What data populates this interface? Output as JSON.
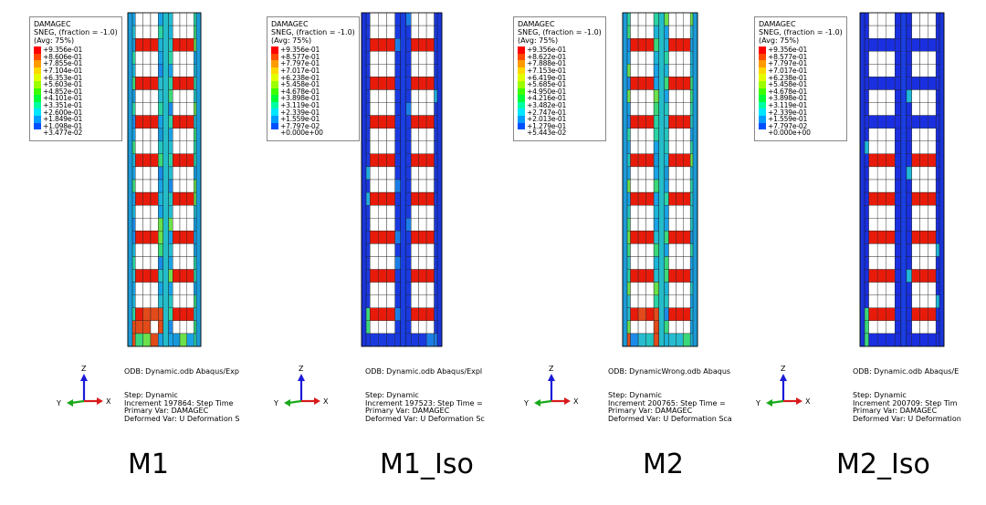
{
  "panels": [
    {
      "name": "M1",
      "title": "M1",
      "legend": {
        "header": [
          "DAMAGEC",
          "SNEG, (fraction = -1.0)",
          "(Avg: 75%)"
        ],
        "levels": [
          "+9.356e-01",
          "+8.606e-01",
          "+7.855e-01",
          "+7.104e-01",
          "+6.353e-01",
          "+5.603e-01",
          "+4.852e-01",
          "+4.101e-01",
          "+3.351e-01",
          "+2.600e-01",
          "+1.849e-01",
          "+1.098e-01",
          "+3.477e-02"
        ]
      },
      "odb_line": "ODB: Dynamic.odb   Abaqus/Exp",
      "step_line": "Step: Dynamic",
      "increment_line": "Increment    197864: Step Time",
      "primary_line": "Primary Var: DAMAGEC",
      "deformed_line": "Deformed Var: U   Deformation S",
      "damage_level": "high"
    },
    {
      "name": "M1_Iso",
      "title": "M1_Iso",
      "legend": {
        "header": [
          "DAMAGEC",
          "SNEG, (fraction = -1.0)",
          "(Avg: 75%)"
        ],
        "levels": [
          "+9.356e-01",
          "+8.577e-01",
          "+7.797e-01",
          "+7.017e-01",
          "+6.238e-01",
          "+5.458e-01",
          "+4.678e-01",
          "+3.898e-01",
          "+3.119e-01",
          "+2.339e-01",
          "+1.559e-01",
          "+7.797e-02",
          "+0.000e+00"
        ]
      },
      "odb_line": "ODB: Dynamic.odb   Abaqus/Expl",
      "step_line": "Step: Dynamic",
      "increment_line": "Increment    197523: Step Time =",
      "primary_line": "Primary Var: DAMAGEC",
      "deformed_line": "Deformed Var: U   Deformation Sc",
      "damage_level": "low"
    },
    {
      "name": "M2",
      "title": "M2",
      "legend": {
        "header": [
          "DAMAGEC",
          "SNEG, (fraction = -1.0)",
          "(Avg: 75%)"
        ],
        "levels": [
          "+9.356e-01",
          "+8.622e-01",
          "+7.888e-01",
          "+7.153e-01",
          "+6.419e-01",
          "+5.685e-01",
          "+4.950e-01",
          "+4.216e-01",
          "+3.482e-01",
          "+2.747e-01",
          "+2.013e-01",
          "+1.279e-01",
          "+5.443e-02"
        ]
      },
      "odb_line": "ODB: DynamicWrong.odb    Abaqus",
      "step_line": "Step: Dynamic",
      "increment_line": "Increment    200765: Step Time =",
      "primary_line": "Primary Var: DAMAGEC",
      "deformed_line": "Deformed Var: U   Deformation Sca",
      "damage_level": "high"
    },
    {
      "name": "M2_Iso",
      "title": "M2_Iso",
      "legend": {
        "header": [
          "DAMAGEC",
          "SNEG, (fraction = -1.0)",
          "(Avg: 75%)"
        ],
        "levels": [
          "+9.356e-01",
          "+8.577e-01",
          "+7.797e-01",
          "+7.017e-01",
          "+6.238e-01",
          "+5.458e-01",
          "+4.678e-01",
          "+3.898e-01",
          "+3.119e-01",
          "+2.339e-01",
          "+1.559e-01",
          "+7.797e-02",
          "+0.000e+00"
        ]
      },
      "odb_line": "ODB: Dynamic.odb    Abaqus/E",
      "step_line": "Step: Dynamic",
      "increment_line": "Increment    200709: Step Tim",
      "primary_line": "Primary Var: DAMAGEC",
      "deformed_line": "Deformed Var: U   Deformation",
      "damage_level": "very-low"
    }
  ],
  "triad_labels": {
    "z": "Z",
    "y": "Y",
    "x": "X"
  },
  "legend_colors": [
    "#ff0000",
    "#ff4a00",
    "#ff9b00",
    "#ffd800",
    "#e2ff00",
    "#9aff00",
    "#3dff00",
    "#00ff3a",
    "#00ffa3",
    "#00e6ff",
    "#009cff",
    "#0050ff",
    "#0000ff"
  ],
  "colors": {
    "band": "#e81b0b",
    "band_dark": "#a70f07",
    "low_face": "#1a32e0",
    "mid_face": "#1fa6e8"
  }
}
